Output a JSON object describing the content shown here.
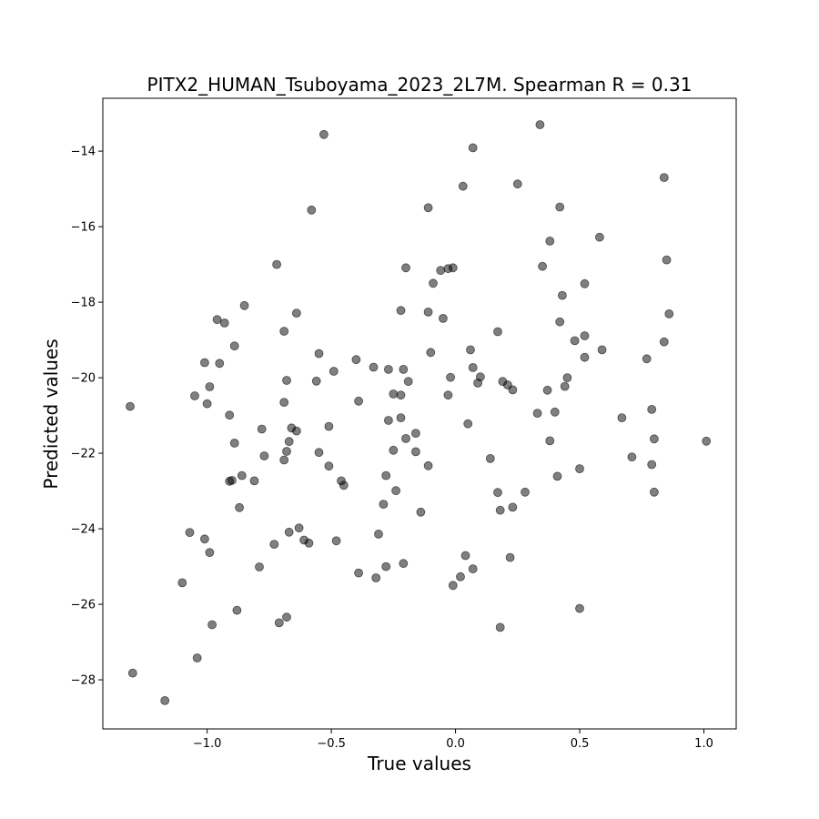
{
  "chart_data": {
    "type": "scatter",
    "title": "PITX2_HUMAN_Tsuboyama_2023_2L7M. Spearman R = 0.31",
    "xlabel": "True values",
    "ylabel": "Predicted values",
    "xlim": [
      -1.42,
      1.13
    ],
    "ylim": [
      -29.3,
      -12.6
    ],
    "xticks": [
      -1.0,
      -0.5,
      0.0,
      0.5,
      1.0
    ],
    "xtick_labels": [
      "−1.0",
      "−0.5",
      "0.0",
      "0.5",
      "1.0"
    ],
    "yticks": [
      -28,
      -26,
      -24,
      -22,
      -20,
      -18,
      -16,
      -14
    ],
    "ytick_labels": [
      "−28",
      "−26",
      "−24",
      "−22",
      "−20",
      "−18",
      "−16",
      "−14"
    ],
    "grid": false,
    "legend": "none",
    "point_color": "#000000",
    "point_opacity": 0.5,
    "points": [
      [
        -1.31,
        -20.76
      ],
      [
        -1.3,
        -27.82
      ],
      [
        -1.17,
        -28.55
      ],
      [
        -1.1,
        -25.43
      ],
      [
        -1.07,
        -24.1
      ],
      [
        -1.05,
        -20.48
      ],
      [
        -1.04,
        -27.42
      ],
      [
        -1.01,
        -19.6
      ],
      [
        -1.01,
        -24.27
      ],
      [
        -1.0,
        -20.69
      ],
      [
        -0.99,
        -24.63
      ],
      [
        -0.99,
        -20.24
      ],
      [
        -0.98,
        -26.54
      ],
      [
        -0.96,
        -18.46
      ],
      [
        -0.95,
        -19.62
      ],
      [
        -0.93,
        -18.55
      ],
      [
        -0.91,
        -20.99
      ],
      [
        -0.91,
        -22.74
      ],
      [
        -0.9,
        -22.72
      ],
      [
        -0.89,
        -19.16
      ],
      [
        -0.89,
        -21.73
      ],
      [
        -0.88,
        -26.16
      ],
      [
        -0.87,
        -23.44
      ],
      [
        -0.86,
        -22.59
      ],
      [
        -0.85,
        -18.09
      ],
      [
        -0.81,
        -22.73
      ],
      [
        -0.79,
        -25.01
      ],
      [
        -0.78,
        -21.36
      ],
      [
        -0.77,
        -22.07
      ],
      [
        -0.73,
        -24.41
      ],
      [
        -0.72,
        -17.0
      ],
      [
        -0.71,
        -26.49
      ],
      [
        -0.69,
        -18.77
      ],
      [
        -0.69,
        -20.65
      ],
      [
        -0.69,
        -22.18
      ],
      [
        -0.68,
        -20.07
      ],
      [
        -0.68,
        -26.34
      ],
      [
        -0.68,
        -21.95
      ],
      [
        -0.67,
        -21.69
      ],
      [
        -0.67,
        -24.09
      ],
      [
        -0.66,
        -21.33
      ],
      [
        -0.64,
        -21.41
      ],
      [
        -0.64,
        -18.29
      ],
      [
        -0.63,
        -23.98
      ],
      [
        -0.61,
        -24.3
      ],
      [
        -0.59,
        -24.38
      ],
      [
        -0.58,
        -15.56
      ],
      [
        -0.56,
        -20.09
      ],
      [
        -0.55,
        -19.36
      ],
      [
        -0.55,
        -21.98
      ],
      [
        -0.53,
        -13.56
      ],
      [
        -0.51,
        -21.29
      ],
      [
        -0.51,
        -22.34
      ],
      [
        -0.49,
        -19.83
      ],
      [
        -0.48,
        -24.32
      ],
      [
        -0.46,
        -22.73
      ],
      [
        -0.45,
        -22.85
      ],
      [
        -0.4,
        -19.52
      ],
      [
        -0.39,
        -20.62
      ],
      [
        -0.39,
        -25.17
      ],
      [
        -0.33,
        -19.72
      ],
      [
        -0.32,
        -25.3
      ],
      [
        -0.31,
        -24.14
      ],
      [
        -0.29,
        -23.35
      ],
      [
        -0.28,
        -25.0
      ],
      [
        -0.28,
        -22.59
      ],
      [
        -0.27,
        -19.78
      ],
      [
        -0.27,
        -21.13
      ],
      [
        -0.25,
        -21.92
      ],
      [
        -0.25,
        -20.43
      ],
      [
        -0.24,
        -22.99
      ],
      [
        -0.22,
        -20.46
      ],
      [
        -0.22,
        -18.22
      ],
      [
        -0.22,
        -21.06
      ],
      [
        -0.21,
        -19.78
      ],
      [
        -0.21,
        -24.92
      ],
      [
        -0.2,
        -21.61
      ],
      [
        -0.2,
        -17.09
      ],
      [
        -0.19,
        -20.1
      ],
      [
        -0.16,
        -21.47
      ],
      [
        -0.16,
        -21.96
      ],
      [
        -0.14,
        -23.56
      ],
      [
        -0.11,
        -15.5
      ],
      [
        -0.11,
        -18.26
      ],
      [
        -0.11,
        -22.33
      ],
      [
        -0.1,
        -19.33
      ],
      [
        -0.09,
        -17.5
      ],
      [
        -0.06,
        -17.16
      ],
      [
        -0.05,
        -18.43
      ],
      [
        -0.03,
        -17.11
      ],
      [
        -0.03,
        -20.46
      ],
      [
        -0.02,
        -19.99
      ],
      [
        -0.01,
        -17.09
      ],
      [
        -0.01,
        -25.5
      ],
      [
        0.02,
        -25.27
      ],
      [
        0.03,
        -14.93
      ],
      [
        0.04,
        -24.71
      ],
      [
        0.05,
        -21.22
      ],
      [
        0.06,
        -19.26
      ],
      [
        0.07,
        -19.73
      ],
      [
        0.07,
        -25.06
      ],
      [
        0.07,
        -13.91
      ],
      [
        0.09,
        -20.14
      ],
      [
        0.1,
        -19.98
      ],
      [
        0.14,
        -22.14
      ],
      [
        0.17,
        -18.78
      ],
      [
        0.17,
        -23.04
      ],
      [
        0.18,
        -23.51
      ],
      [
        0.18,
        -26.61
      ],
      [
        0.19,
        -20.1
      ],
      [
        0.21,
        -20.19
      ],
      [
        0.22,
        -24.76
      ],
      [
        0.23,
        -23.43
      ],
      [
        0.23,
        -20.32
      ],
      [
        0.25,
        -14.87
      ],
      [
        0.28,
        -23.03
      ],
      [
        0.33,
        -20.94
      ],
      [
        0.34,
        -13.3
      ],
      [
        0.35,
        -17.05
      ],
      [
        0.37,
        -20.33
      ],
      [
        0.38,
        -16.38
      ],
      [
        0.38,
        -21.67
      ],
      [
        0.4,
        -20.91
      ],
      [
        0.41,
        -22.61
      ],
      [
        0.42,
        -18.52
      ],
      [
        0.42,
        -15.48
      ],
      [
        0.43,
        -17.82
      ],
      [
        0.44,
        -20.23
      ],
      [
        0.45,
        -20.0
      ],
      [
        0.48,
        -19.02
      ],
      [
        0.5,
        -22.41
      ],
      [
        0.5,
        -26.11
      ],
      [
        0.52,
        -17.51
      ],
      [
        0.52,
        -18.89
      ],
      [
        0.52,
        -19.46
      ],
      [
        0.58,
        -16.28
      ],
      [
        0.59,
        -19.26
      ],
      [
        0.67,
        -21.06
      ],
      [
        0.71,
        -22.1
      ],
      [
        0.77,
        -19.5
      ],
      [
        0.79,
        -20.84
      ],
      [
        0.79,
        -22.3
      ],
      [
        0.8,
        -21.62
      ],
      [
        0.8,
        -23.03
      ],
      [
        0.84,
        -14.7
      ],
      [
        0.84,
        -19.05
      ],
      [
        0.85,
        -16.88
      ],
      [
        0.86,
        -18.31
      ],
      [
        1.01,
        -21.68
      ]
    ]
  }
}
